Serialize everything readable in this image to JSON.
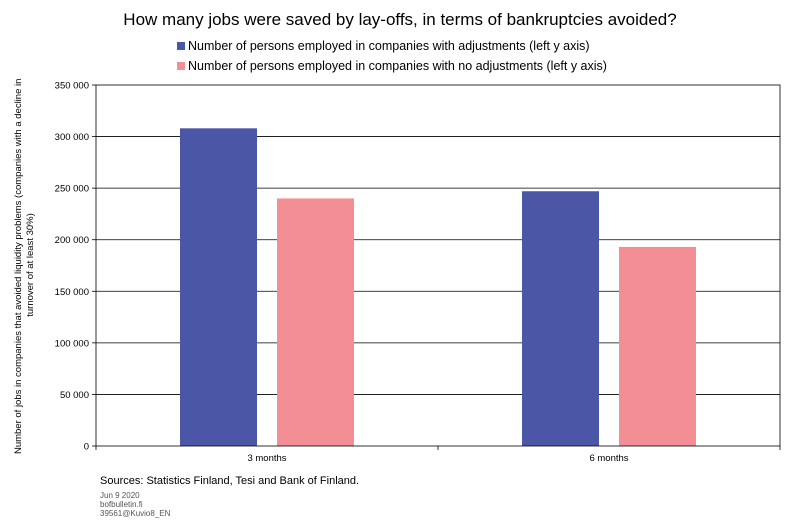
{
  "chart_data": {
    "type": "bar",
    "title": "How many jobs were saved by lay-offs, in terms of bankruptcies  avoided?",
    "ylabel_lines": [
      "Number of jobs in companies that avoided liquidity problems (companies with a decline in",
      "turnover of at least 30%)"
    ],
    "xlabel": "",
    "categories": [
      "3 months",
      "6 months"
    ],
    "series": [
      {
        "name": "Number of persons employed in companies with adjustments (left y axis)",
        "color": "#4c56a6",
        "values": [
          308000,
          247000
        ]
      },
      {
        "name": "Number of persons employed in companies with no adjustments (left y axis)",
        "color": "#f28e94",
        "values": [
          240000,
          193000
        ]
      }
    ],
    "ylim": [
      0,
      350000
    ],
    "yticks": [
      0,
      50000,
      100000,
      150000,
      200000,
      250000,
      300000,
      350000
    ],
    "ytick_labels": [
      "0",
      "50 000",
      "100 000",
      "150 000",
      "200 000",
      "250 000",
      "300 000",
      "350 000"
    ],
    "grid": true,
    "legend_position": "top"
  },
  "source_note": "Sources: Statistics Finland, Tesi and Bank of Finland.",
  "meta": {
    "date": "Jun 9 2020",
    "site": "bofbulletin.fi",
    "code": "39561@Kuvio8_EN"
  }
}
